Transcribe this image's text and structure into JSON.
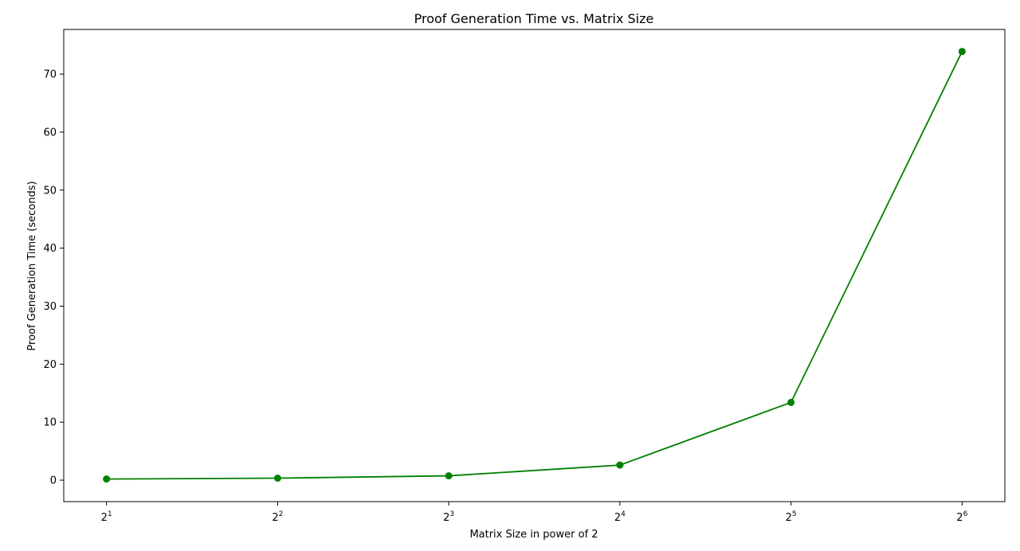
{
  "chart_data": {
    "type": "line",
    "title": "Proof Generation Time vs. Matrix Size",
    "xlabel": "Matrix Size in power of 2",
    "ylabel": "Proof Generation Time (seconds)",
    "x_tick_labels": [
      {
        "base": "2",
        "exp": "1"
      },
      {
        "base": "2",
        "exp": "2"
      },
      {
        "base": "2",
        "exp": "3"
      },
      {
        "base": "2",
        "exp": "4"
      },
      {
        "base": "2",
        "exp": "5"
      },
      {
        "base": "2",
        "exp": "6"
      }
    ],
    "y_ticks": [
      0,
      10,
      20,
      30,
      40,
      50,
      60,
      70
    ],
    "xlim": [
      0.75,
      6.25
    ],
    "ylim": [
      -3.7,
      77.7
    ],
    "grid": false,
    "series": [
      {
        "x": [
          1,
          2,
          3,
          4,
          5,
          6
        ],
        "values": [
          0.2,
          0.35,
          0.75,
          2.6,
          13.4,
          73.9
        ],
        "color": "#008000",
        "marker": "circle"
      }
    ]
  }
}
